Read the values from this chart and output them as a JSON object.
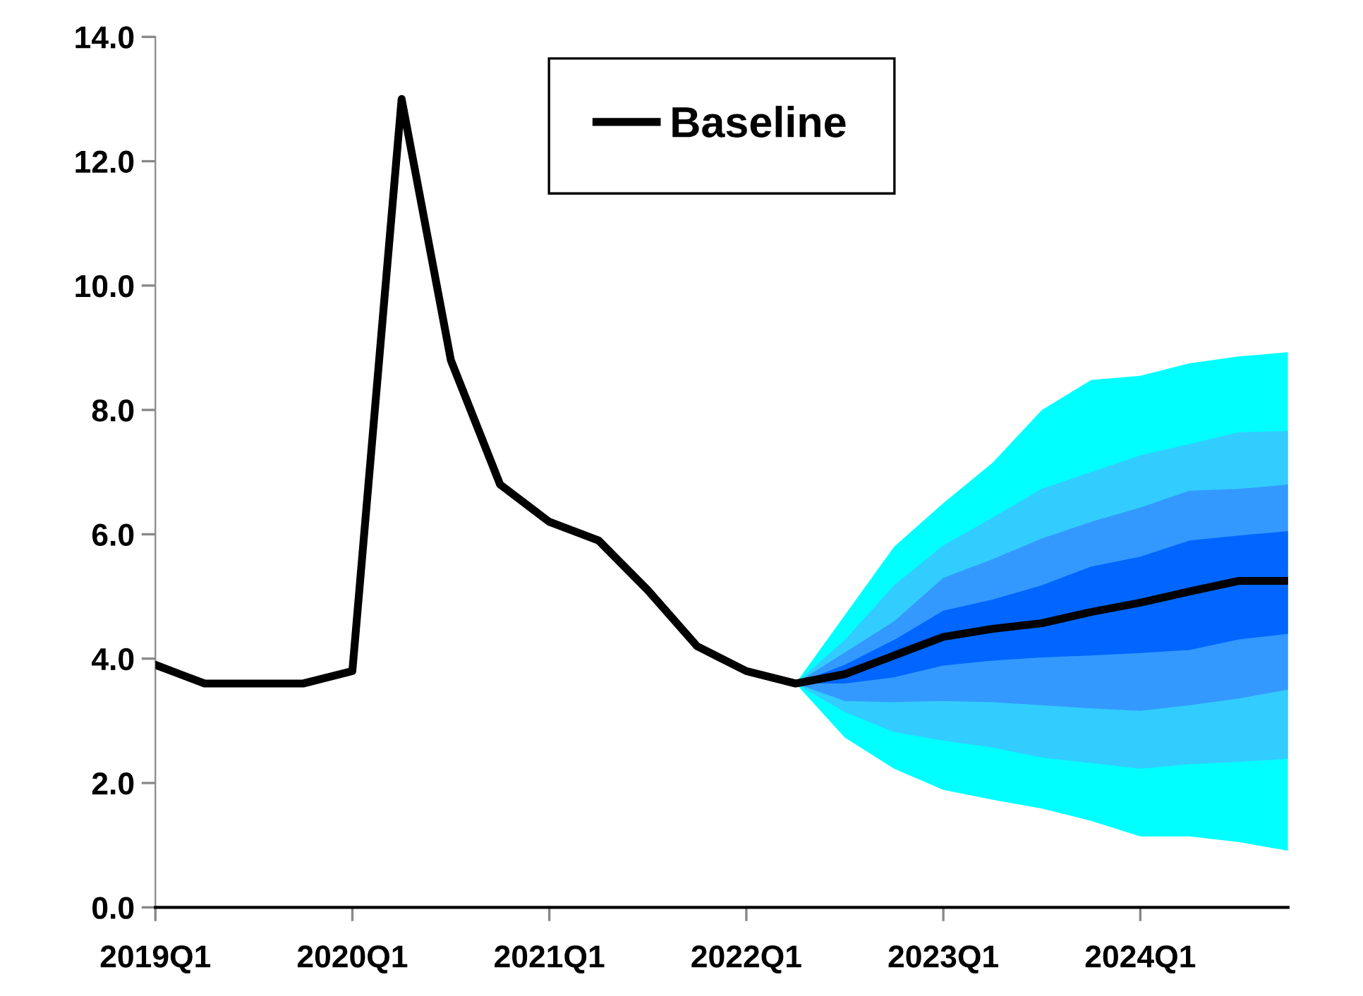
{
  "chart_data": {
    "type": "line",
    "categories": [
      "2019Q1",
      null,
      null,
      null,
      "2020Q1",
      null,
      null,
      null,
      "2021Q1",
      null,
      null,
      null,
      "2022Q1",
      null,
      null,
      null,
      "2023Q1",
      null,
      null,
      null,
      "2024Q1",
      null,
      null,
      null
    ],
    "series": [
      {
        "type": "line",
        "color": "#00ffff",
        "values": [
          null,
          null,
          null,
          null,
          null,
          null,
          null,
          null,
          null,
          null,
          null,
          null,
          null,
          null,
          null,
          null,
          null,
          null,
          null,
          null,
          null,
          null,
          null,
          null
        ],
        "lower": [
          null,
          null,
          null,
          null,
          null,
          null,
          null,
          null,
          null,
          null,
          null,
          null,
          null,
          3.6,
          2.73,
          2.23,
          1.89,
          1.73,
          1.59,
          1.39,
          1.14,
          1.14,
          1.05,
          0.91
        ],
        "upper": [
          null,
          null,
          null,
          null,
          null,
          null,
          null,
          null,
          null,
          null,
          null,
          null,
          null,
          3.6,
          4.7,
          5.8,
          6.5,
          7.15,
          8.0,
          8.48,
          8.55,
          8.75,
          8.86,
          8.93
        ]
      },
      {
        "type": "line",
        "color": "#33ccff",
        "values": [
          null,
          null,
          null,
          null,
          null,
          null,
          null,
          null,
          null,
          null,
          null,
          null,
          null,
          null,
          null,
          null,
          null,
          null,
          null,
          null,
          null,
          null,
          null,
          null
        ],
        "lower": [
          null,
          null,
          null,
          null,
          null,
          null,
          null,
          null,
          null,
          null,
          null,
          null,
          null,
          3.6,
          3.14,
          2.82,
          2.68,
          2.57,
          2.41,
          2.32,
          2.23,
          2.3,
          2.34,
          2.39
        ],
        "upper": [
          null,
          null,
          null,
          null,
          null,
          null,
          null,
          null,
          null,
          null,
          null,
          null,
          null,
          3.6,
          4.3,
          5.18,
          5.82,
          6.27,
          6.73,
          7.0,
          7.27,
          7.45,
          7.64,
          7.66
        ]
      },
      {
        "type": "line",
        "color": "#3399ff",
        "values": [
          null,
          null,
          null,
          null,
          null,
          null,
          null,
          null,
          null,
          null,
          null,
          null,
          null,
          null,
          null,
          null,
          null,
          null,
          null,
          null,
          null,
          null,
          null,
          null
        ],
        "lower": [
          null,
          null,
          null,
          null,
          null,
          null,
          null,
          null,
          null,
          null,
          null,
          null,
          null,
          3.6,
          3.32,
          3.3,
          3.32,
          3.3,
          3.25,
          3.2,
          3.16,
          3.25,
          3.36,
          3.5
        ],
        "upper": [
          null,
          null,
          null,
          null,
          null,
          null,
          null,
          null,
          null,
          null,
          null,
          null,
          null,
          3.6,
          4.1,
          4.6,
          5.3,
          5.6,
          5.93,
          6.2,
          6.43,
          6.7,
          6.73,
          6.8
        ]
      },
      {
        "type": "line",
        "color": "#0066ff",
        "values": [
          null,
          null,
          null,
          null,
          null,
          null,
          null,
          null,
          null,
          null,
          null,
          null,
          null,
          null,
          null,
          null,
          null,
          null,
          null,
          null,
          null,
          null,
          null,
          null
        ],
        "lower": [
          null,
          null,
          null,
          null,
          null,
          null,
          null,
          null,
          null,
          null,
          null,
          null,
          null,
          3.6,
          3.6,
          3.7,
          3.89,
          3.97,
          4.02,
          4.05,
          4.09,
          4.14,
          4.31,
          4.4
        ],
        "upper": [
          null,
          null,
          null,
          null,
          null,
          null,
          null,
          null,
          null,
          null,
          null,
          null,
          null,
          3.6,
          3.9,
          4.3,
          4.77,
          4.95,
          5.18,
          5.48,
          5.64,
          5.9,
          5.98,
          6.05
        ]
      },
      {
        "type": "line",
        "name": "Baseline",
        "color": "#000000",
        "values": [
          3.9,
          3.6,
          3.6,
          3.6,
          3.8,
          13.0,
          8.8,
          6.8,
          6.2,
          5.9,
          5.1,
          4.2,
          3.8,
          3.6,
          3.75,
          4.05,
          4.35,
          4.48,
          4.57,
          4.75,
          4.9,
          5.08,
          5.25,
          5.25
        ]
      }
    ],
    "ylim": [
      0,
      14
    ],
    "yticks": [
      {
        "value": 0,
        "label": "0.0"
      },
      {
        "value": 2,
        "label": "2.0"
      },
      {
        "value": 4,
        "label": "4.0"
      },
      {
        "value": 6,
        "label": "6.0"
      },
      {
        "value": 8,
        "label": "8.0"
      },
      {
        "value": 10,
        "label": "10.0"
      },
      {
        "value": 12,
        "label": "12.0"
      },
      {
        "value": 14,
        "label": "14.0"
      }
    ],
    "legend": "top",
    "grid": false,
    "marker": "none",
    "line_style": "solid"
  }
}
